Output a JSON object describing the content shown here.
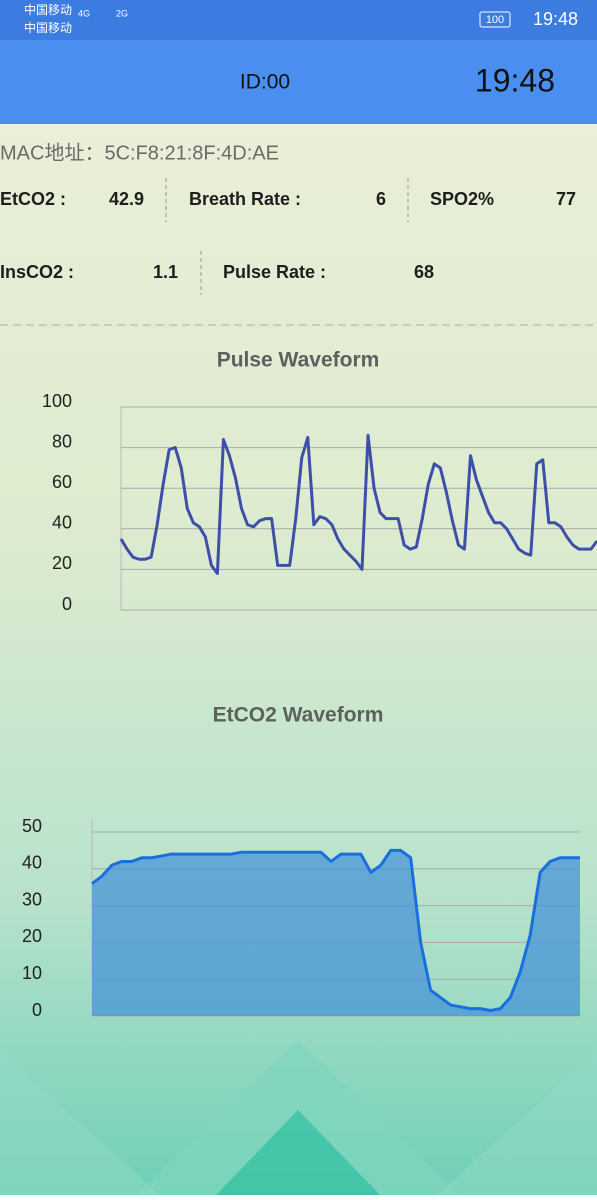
{
  "status_bar": {
    "carriers": [
      "中国移动",
      "中国移动"
    ],
    "networks": [
      "4G",
      "2G"
    ],
    "battery": "100",
    "time": "19:48"
  },
  "header": {
    "id": "ID:00",
    "time": "19:48"
  },
  "device": {
    "mac": "MAC地址：5C:F8:21:8F:4D:AE"
  },
  "readings": [
    {
      "label": "EtCO2 :",
      "value": 42.9
    },
    {
      "label": "Breath Rate :",
      "value": 6
    },
    {
      "label": "SPO2%",
      "value": 77
    },
    {
      "label": "InsCO2 :",
      "value": 1.1
    },
    {
      "label": "Pulse Rate :",
      "value": 68
    }
  ],
  "chart_data": [
    {
      "type": "line",
      "title": "Pulse Waveform",
      "color": "#3d4fa8",
      "grid": true,
      "ylim": [
        0,
        100
      ],
      "yticks": [
        0,
        20,
        40,
        60,
        80,
        100
      ],
      "values": [
        35,
        30,
        26,
        25,
        25,
        26,
        42,
        62,
        79,
        80,
        70,
        50,
        43,
        41,
        36,
        22,
        18,
        84,
        76,
        65,
        50,
        42,
        41,
        44,
        45,
        45,
        22,
        22,
        22,
        45,
        75,
        85,
        42,
        46,
        45,
        42,
        35,
        30,
        27,
        24,
        20,
        86,
        60,
        48,
        45,
        45,
        45,
        32,
        30,
        31,
        45,
        62,
        72,
        70,
        58,
        44,
        32,
        30,
        76,
        64,
        56,
        48,
        43,
        43,
        40,
        35,
        30,
        28,
        27,
        72,
        74,
        43,
        43,
        41,
        36,
        32,
        30,
        30,
        30,
        34
      ]
    },
    {
      "type": "area",
      "title": "EtCO2 Waveform",
      "color": "#1a6fe0",
      "grid": true,
      "ylim": [
        0,
        50
      ],
      "yticks": [
        0,
        10,
        20,
        30,
        40,
        50
      ],
      "values": [
        36,
        38,
        41,
        42,
        42,
        43,
        43,
        43.5,
        44,
        44,
        44,
        44,
        44,
        44,
        44,
        44.5,
        44.5,
        44.5,
        44.5,
        44.5,
        44.5,
        44.5,
        44.5,
        44.5,
        42,
        44,
        44,
        44,
        39,
        41,
        45,
        45,
        43,
        20,
        7,
        5,
        3,
        2.5,
        2,
        2,
        1.5,
        2,
        5,
        12,
        22,
        39,
        42,
        43,
        43,
        43
      ]
    }
  ]
}
